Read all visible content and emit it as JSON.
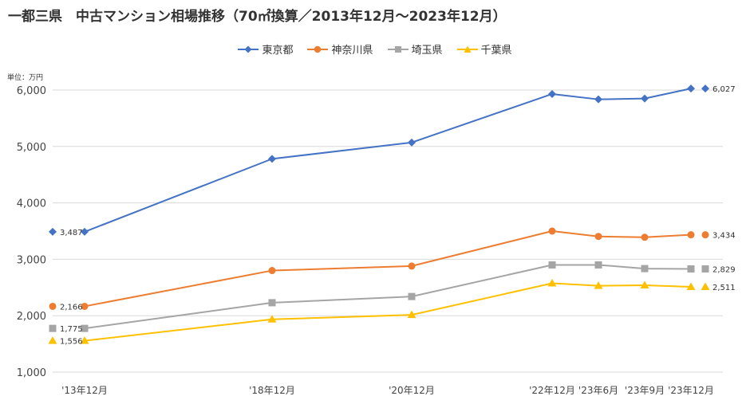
{
  "chart_data": {
    "type": "line",
    "title": "一都三県　中古マンション相場推移（70㎡換算／2013年12月～2023年12月）",
    "unit_label": "単位：万円",
    "categories": [
      "'13年12月",
      "'18年12月",
      "'20年12月",
      "'22年12月",
      "'23年6月",
      "'23年9月",
      "'23年12月"
    ],
    "ylim": [
      1000,
      6000
    ],
    "yticks": [
      1000,
      2000,
      3000,
      4000,
      5000,
      6000
    ],
    "ytick_labels": [
      "1,000",
      "2,000",
      "3,000",
      "4,000",
      "5,000",
      "6,000"
    ],
    "grid": true,
    "legend_position": "top",
    "series": [
      {
        "name": "東京都",
        "color": "#4472C4",
        "marker": "diamond",
        "values": [
          3487,
          4780,
          5070,
          5930,
          5835,
          5850,
          6027
        ],
        "start_label": "3,487",
        "end_label": "6,027"
      },
      {
        "name": "神奈川県",
        "color": "#ED7D31",
        "marker": "circle",
        "values": [
          2166,
          2800,
          2880,
          3500,
          3405,
          3390,
          3434
        ],
        "start_label": "2,166",
        "end_label": "3,434"
      },
      {
        "name": "埼玉県",
        "color": "#A5A5A5",
        "marker": "square",
        "values": [
          1775,
          2230,
          2340,
          2900,
          2900,
          2835,
          2829
        ],
        "start_label": "1,775",
        "end_label": "2,829"
      },
      {
        "name": "千葉県",
        "color": "#FFC000",
        "marker": "triangle",
        "values": [
          1556,
          1935,
          2015,
          2575,
          2530,
          2540,
          2511
        ],
        "start_label": "1,556",
        "end_label": "2,511"
      }
    ]
  }
}
